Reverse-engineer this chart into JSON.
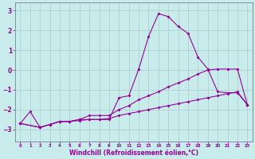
{
  "xlabel": "Windchill (Refroidissement éolien,°C)",
  "bg_color": "#c8ecec",
  "line_color": "#990099",
  "grid_color": "#aacccc",
  "spine_color": "#8888aa",
  "xlim": [
    -0.5,
    23.5
  ],
  "ylim": [
    -3.6,
    3.4
  ],
  "xticks": [
    0,
    1,
    2,
    3,
    4,
    5,
    6,
    7,
    8,
    9,
    10,
    11,
    12,
    13,
    14,
    15,
    16,
    17,
    18,
    19,
    20,
    21,
    22,
    23
  ],
  "yticks": [
    -3,
    -2,
    -1,
    0,
    1,
    2,
    3
  ],
  "line1_x": [
    0,
    1,
    2,
    3,
    4,
    5,
    6,
    7,
    8,
    9,
    10,
    11,
    12,
    13,
    14,
    15,
    16,
    17,
    18,
    19,
    20,
    21,
    22,
    23
  ],
  "line1_y": [
    -2.7,
    -2.1,
    -2.9,
    -2.75,
    -2.6,
    -2.6,
    -2.55,
    -2.5,
    -2.5,
    -2.5,
    -1.4,
    -1.3,
    0.05,
    1.7,
    2.85,
    2.7,
    2.2,
    1.85,
    0.65,
    0.05,
    -1.1,
    -1.15,
    -1.15,
    -1.75
  ],
  "line2_x": [
    0,
    2,
    3,
    4,
    5,
    6,
    7,
    8,
    9,
    10,
    11,
    12,
    13,
    14,
    15,
    16,
    17,
    18,
    19,
    20,
    21,
    22,
    23
  ],
  "line2_y": [
    -2.7,
    -2.9,
    -2.75,
    -2.6,
    -2.6,
    -2.5,
    -2.3,
    -2.3,
    -2.3,
    -2.0,
    -1.8,
    -1.5,
    -1.3,
    -1.1,
    -0.85,
    -0.65,
    -0.45,
    -0.2,
    0.0,
    0.05,
    0.05,
    0.05,
    -1.75
  ],
  "line3_x": [
    0,
    2,
    3,
    4,
    5,
    6,
    7,
    8,
    9,
    10,
    11,
    12,
    13,
    14,
    15,
    16,
    17,
    18,
    19,
    20,
    21,
    22,
    23
  ],
  "line3_y": [
    -2.7,
    -2.9,
    -2.75,
    -2.6,
    -2.6,
    -2.5,
    -2.5,
    -2.5,
    -2.45,
    -2.3,
    -2.2,
    -2.1,
    -2.0,
    -1.9,
    -1.8,
    -1.7,
    -1.6,
    -1.5,
    -1.4,
    -1.3,
    -1.2,
    -1.1,
    -1.75
  ]
}
